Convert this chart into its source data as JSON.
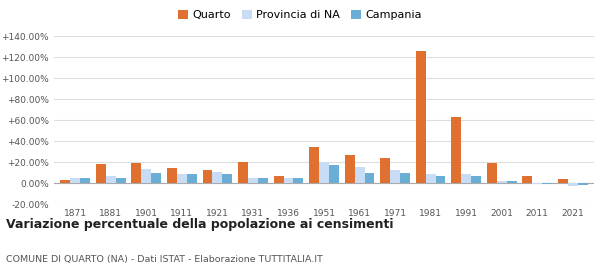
{
  "years": [
    1871,
    1881,
    1901,
    1911,
    1921,
    1931,
    1936,
    1951,
    1961,
    1971,
    1981,
    1991,
    2001,
    2011,
    2021
  ],
  "quarto": [
    3.0,
    18.5,
    19.5,
    15.0,
    13.0,
    20.0,
    7.0,
    35.0,
    27.0,
    24.0,
    126.0,
    63.0,
    19.5,
    7.0,
    4.5
  ],
  "provincia_na": [
    5.5,
    7.0,
    14.0,
    9.0,
    10.5,
    5.5,
    5.5,
    20.0,
    16.0,
    12.5,
    9.0,
    9.0,
    2.0,
    -1.0,
    -2.5
  ],
  "campania": [
    5.0,
    5.0,
    10.0,
    9.0,
    9.0,
    5.5,
    5.0,
    17.5,
    10.0,
    10.0,
    7.0,
    7.0,
    2.5,
    -0.5,
    -2.0
  ],
  "quarto_color": "#e07030",
  "provincia_color": "#c8dcf5",
  "campania_color": "#6aaed6",
  "title": "Variazione percentuale della popolazione ai censimenti",
  "subtitle": "COMUNE DI QUARTO (NA) - Dati ISTAT - Elaborazione TUTTITALIA.IT",
  "legend_labels": [
    "Quarto",
    "Provincia di NA",
    "Campania"
  ],
  "ylim": [
    -20,
    140
  ],
  "yticks": [
    -20,
    0,
    20,
    40,
    60,
    80,
    100,
    120,
    140
  ],
  "background_color": "#ffffff",
  "grid_color": "#dddddd",
  "bar_width": 0.28
}
